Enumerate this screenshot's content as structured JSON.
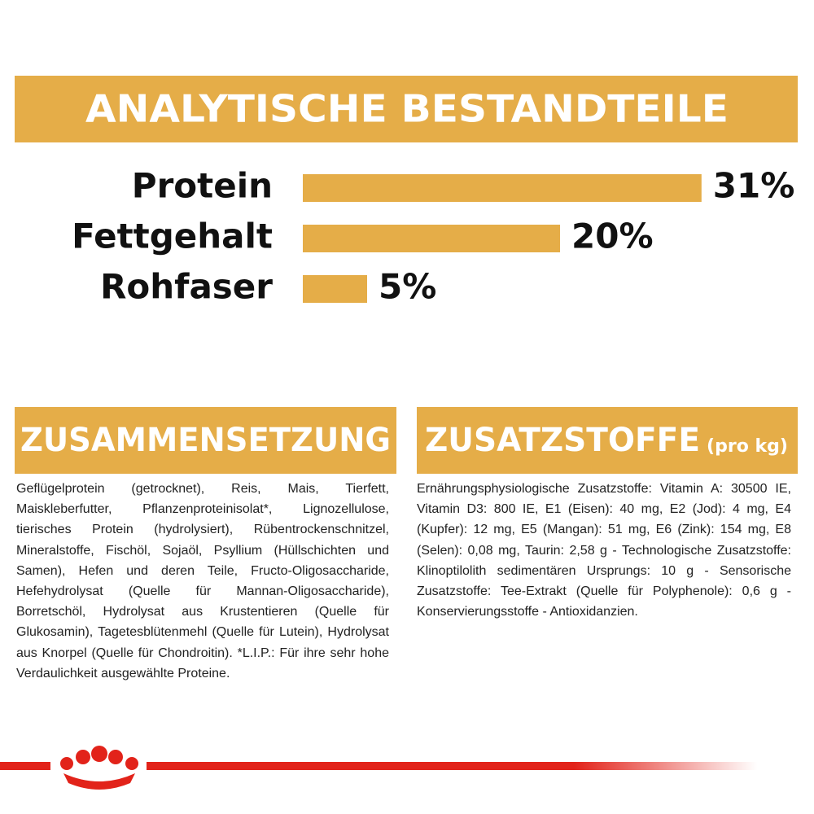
{
  "header": {
    "title": "ANALYTISCHE BESTANDTEILE"
  },
  "chart_data": {
    "type": "bar",
    "orientation": "horizontal",
    "color": "#e5ad48",
    "categories": [
      "Protein",
      "Fettgehalt",
      "Rohfaser"
    ],
    "values": [
      31,
      20,
      5
    ],
    "value_labels": [
      "31%",
      "20%",
      "5%"
    ]
  },
  "composition": {
    "title": "ZUSAMMENSETZUNG",
    "text": "Geflügelprotein (getrocknet), Reis, Mais, Tierfett, Maiskleberfutter, Pflanzenproteinisolat*, Lignozellulose, tierisches Protein (hydrolysiert), Rübentrockenschnitzel, Mineralstoffe, Fischöl, Sojaöl, Psyllium (Hüllschichten und Samen), Hefen und deren Teile, Fructo-Oligosaccharide, Hefehydrolysat (Quelle für Mannan-Oligosaccharide), Borretschöl, Hydrolysat aus Krustentieren (Quelle für Glukosamin), Tagetesblütenmehl (Quelle für Lutein), Hydrolysat aus Knorpel (Quelle für Chondroitin). *L.I.P.: Für ihre sehr hohe Verdaulichkeit ausgewählte Proteine."
  },
  "additives": {
    "title": "ZUSATZSTOFFE",
    "unit": "(pro kg)",
    "text": "Ernährungsphysiologische Zusatzstoffe: Vitamin A: 30500 IE, Vitamin D3: 800 IE, E1 (Eisen): 40 mg, E2 (Jod): 4 mg, E4 (Kupfer): 12 mg, E5 (Mangan): 51 mg, E6 (Zink): 154 mg, E8 (Selen): 0,08 mg, Taurin: 2,58 g - Technologische Zusatzstoffe: Klinoptilolith sedimentären Ursprungs: 10 g - Sensorische Zusatzstoffe: Tee-Extrakt (Quelle für Polyphenole): 0,6 g - Konservierungsstoffe - Antioxidanzien."
  }
}
